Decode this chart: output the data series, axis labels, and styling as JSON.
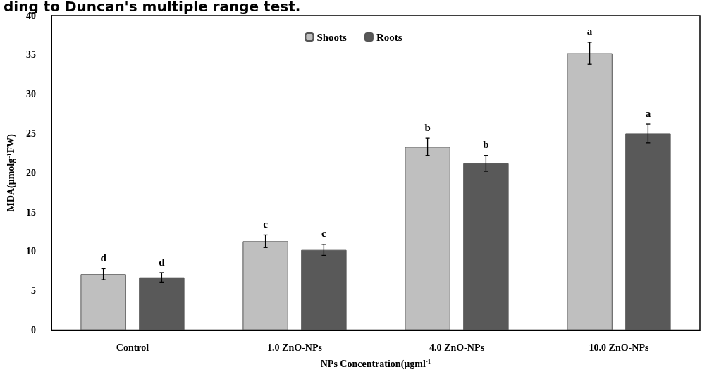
{
  "chart_data": {
    "type": "bar",
    "title": "ding to Duncan's multiple range test.",
    "xlabel": "NPs Concentration(μgml$^{-1}$",
    "ylabel": "MDA(μmolg$^{-1}$FW)",
    "categories": [
      "Control",
      "1.0 ZnO-NPs",
      "4.0 ZnO-NPs",
      "10.0 ZnO-NPs"
    ],
    "series": [
      {
        "name": "Shoots",
        "color": "#bfbfbf",
        "values": [
          7.1,
          11.3,
          23.3,
          35.2
        ],
        "errors": [
          0.7,
          0.8,
          1.1,
          1.4
        ]
      },
      {
        "name": "Roots",
        "color": "#595959",
        "values": [
          6.7,
          10.2,
          21.2,
          25.0
        ],
        "errors": [
          0.6,
          0.7,
          1.0,
          1.2
        ]
      }
    ],
    "annotations": [
      "d",
      "d",
      "c",
      "c",
      "b",
      "b",
      "a",
      "a"
    ],
    "ylim": [
      0,
      40
    ],
    "yticks": [
      0,
      5,
      10,
      15,
      20,
      25,
      30,
      35,
      40
    ],
    "grid": false,
    "legend": "top"
  }
}
